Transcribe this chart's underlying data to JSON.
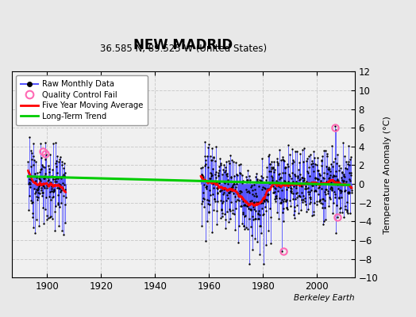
{
  "title": "NEW MADRID",
  "subtitle": "36.585 N, 89.525 W (United States)",
  "ylabel": "Temperature Anomaly (°C)",
  "credit": "Berkeley Earth",
  "ylim": [
    -10,
    12
  ],
  "yticks": [
    -10,
    -8,
    -6,
    -4,
    -2,
    0,
    2,
    4,
    6,
    8,
    10,
    12
  ],
  "xlim": [
    1887,
    2014
  ],
  "xticks": [
    1900,
    1920,
    1940,
    1960,
    1980,
    2000
  ],
  "bg_color": "#e8e8e8",
  "plot_bg_color": "#f0f0f0",
  "grid_color": "#cccccc",
  "raw_line_color": "#5555ff",
  "raw_dot_color": "#000000",
  "qc_fail_color": "#ff69b4",
  "moving_avg_color": "#ff0000",
  "trend_color": "#00cc00",
  "trend_x": [
    1893,
    2012
  ],
  "trend_y": [
    0.8,
    -0.1
  ],
  "period1_start": 1893,
  "period1_end": 1907,
  "period2_start": 1957,
  "period2_end": 2013,
  "qc_points": [
    [
      1898.5,
      3.5
    ],
    [
      1899.3,
      3.2
    ],
    [
      1987.5,
      -7.2
    ],
    [
      2006.8,
      6.0
    ],
    [
      2007.5,
      -3.5
    ]
  ]
}
